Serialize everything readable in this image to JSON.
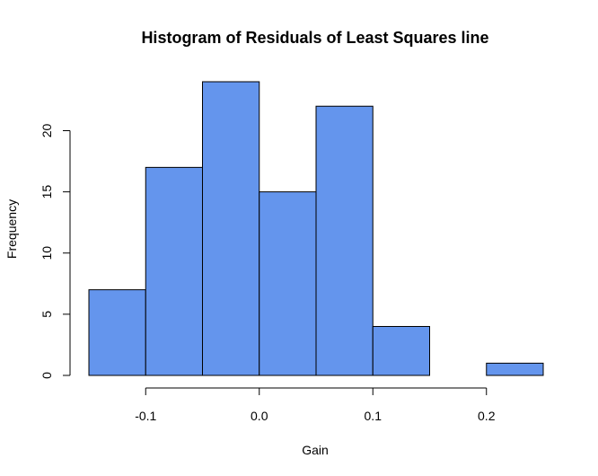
{
  "chart_data": {
    "type": "bar",
    "title": "Histogram of Residuals of Least Squares line",
    "xlabel": "Gain",
    "ylabel": "Frequency",
    "bins": [
      {
        "start": -0.15,
        "end": -0.1,
        "count": 7
      },
      {
        "start": -0.1,
        "end": -0.05,
        "count": 17
      },
      {
        "start": -0.05,
        "end": 0.0,
        "count": 24
      },
      {
        "start": 0.0,
        "end": 0.05,
        "count": 15
      },
      {
        "start": 0.05,
        "end": 0.1,
        "count": 22
      },
      {
        "start": 0.1,
        "end": 0.15,
        "count": 4
      },
      {
        "start": 0.15,
        "end": 0.2,
        "count": 0
      },
      {
        "start": 0.2,
        "end": 0.25,
        "count": 1
      }
    ],
    "xlim": [
      -0.15,
      0.25
    ],
    "ylim": [
      0,
      24
    ],
    "x_ticks": [
      {
        "value": -0.1,
        "label": "-0.1"
      },
      {
        "value": 0.0,
        "label": "0.0"
      },
      {
        "value": 0.1,
        "label": "0.1"
      },
      {
        "value": 0.2,
        "label": "0.2"
      }
    ],
    "y_ticks": [
      {
        "value": 0,
        "label": "0"
      },
      {
        "value": 5,
        "label": "5"
      },
      {
        "value": 10,
        "label": "10"
      },
      {
        "value": 15,
        "label": "15"
      },
      {
        "value": 20,
        "label": "20"
      }
    ],
    "colors": {
      "bar_fill": "#6495ED",
      "bar_stroke": "#000000",
      "axis": "#000000"
    }
  }
}
